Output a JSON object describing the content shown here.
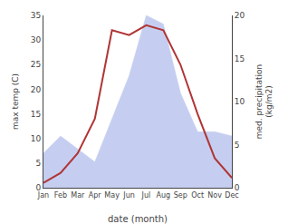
{
  "chart_data": {
    "type": "line",
    "categories": [
      "Jan",
      "Feb",
      "Mar",
      "Apr",
      "May",
      "Jun",
      "Jul",
      "Aug",
      "Sep",
      "Oct",
      "Nov",
      "Dec"
    ],
    "series": [
      {
        "type": "area",
        "color": "#c5cef0",
        "axis": "y2",
        "values": [
          4,
          6,
          4.5,
          3,
          8,
          13,
          20,
          19,
          11,
          6.5,
          6.5,
          6
        ]
      },
      {
        "type": "line",
        "color": "#b03535",
        "values": [
          1,
          3,
          7,
          14,
          32,
          31,
          33,
          32,
          25,
          15,
          6,
          2
        ]
      }
    ],
    "xlabel": "date (month)",
    "ylabel": "max temp (C)",
    "y2label": "med. precipitation\n(kg/m2)",
    "ylim": [
      0,
      35
    ],
    "yticks": [
      0,
      5,
      10,
      15,
      20,
      25,
      30,
      35
    ],
    "y2lim": [
      0,
      20
    ],
    "y2ticks": [
      0,
      5,
      10,
      15,
      20
    ],
    "grid": false
  }
}
